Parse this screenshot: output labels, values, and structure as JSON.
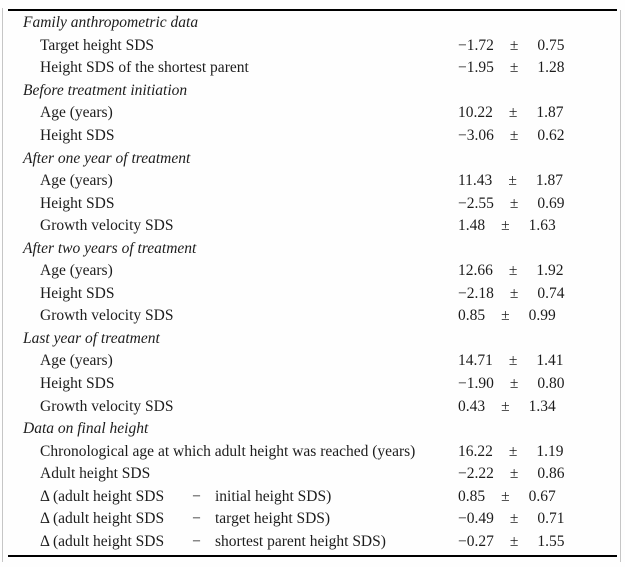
{
  "page": {
    "background": "#fefefe",
    "text_color": "#1c1c1c",
    "rule_color": "#000000",
    "edge_color": "#c6c6c6"
  },
  "table": {
    "sections": [
      {
        "header": "Family anthropometric data",
        "rows": [
          {
            "label": "Target height SDS",
            "mean": "−1.72",
            "pm": "±",
            "sd": "0.75"
          },
          {
            "label": "Height SDS of the shortest parent",
            "mean": "−1.95",
            "pm": "±",
            "sd": "1.28"
          }
        ]
      },
      {
        "header": "Before treatment initiation",
        "rows": [
          {
            "label": "Age (years)",
            "mean": "10.22",
            "pm": "±",
            "sd": "1.87"
          },
          {
            "label": "Height SDS",
            "mean": "−3.06",
            "pm": "±",
            "sd": "0.62"
          }
        ]
      },
      {
        "header": "After one year of treatment",
        "rows": [
          {
            "label": "Age (years)",
            "mean": "11.43",
            "pm": "±",
            "sd": "1.87"
          },
          {
            "label": "Height SDS",
            "mean": "−2.55",
            "pm": "±",
            "sd": "0.69"
          },
          {
            "label": "Growth velocity SDS",
            "mean": "1.48",
            "pm": "±",
            "sd": "1.63"
          }
        ]
      },
      {
        "header": "After two years of treatment",
        "rows": [
          {
            "label": "Age (years)",
            "mean": "12.66",
            "pm": "±",
            "sd": "1.92"
          },
          {
            "label": "Height SDS",
            "mean": "−2.18",
            "pm": "±",
            "sd": "0.74"
          },
          {
            "label": "Growth velocity SDS",
            "mean": "0.85",
            "pm": "±",
            "sd": "0.99"
          }
        ]
      },
      {
        "header": "Last year of treatment",
        "rows": [
          {
            "label": "Age (years)",
            "mean": "14.71",
            "pm": "±",
            "sd": "1.41"
          },
          {
            "label": "Height SDS",
            "mean": "−1.90",
            "pm": "±",
            "sd": "0.80"
          },
          {
            "label": "Growth velocity SDS",
            "mean": "0.43",
            "pm": "±",
            "sd": "1.34"
          }
        ]
      },
      {
        "header": "Data on final height",
        "rows": [
          {
            "label": "Chronological age at which adult height was reached (years)",
            "mean": "16.22",
            "pm": "±",
            "sd": "1.19"
          },
          {
            "label": "Adult height SDS",
            "mean": "−2.22",
            "pm": "±",
            "sd": "0.86"
          },
          {
            "label_pre": "Δ (adult height SDS",
            "label_op": "−",
            "label_post": "initial height SDS)",
            "mean": "0.85",
            "pm": "±",
            "sd": "0.67"
          },
          {
            "label_pre": "Δ (adult height SDS",
            "label_op": "−",
            "label_post": "target height SDS)",
            "mean": "−0.49",
            "pm": "±",
            "sd": "0.71"
          },
          {
            "label_pre": "Δ (adult height SDS",
            "label_op": "−",
            "label_post": "shortest parent height SDS)",
            "mean": "−0.27",
            "pm": "±",
            "sd": "1.55"
          }
        ]
      }
    ]
  }
}
